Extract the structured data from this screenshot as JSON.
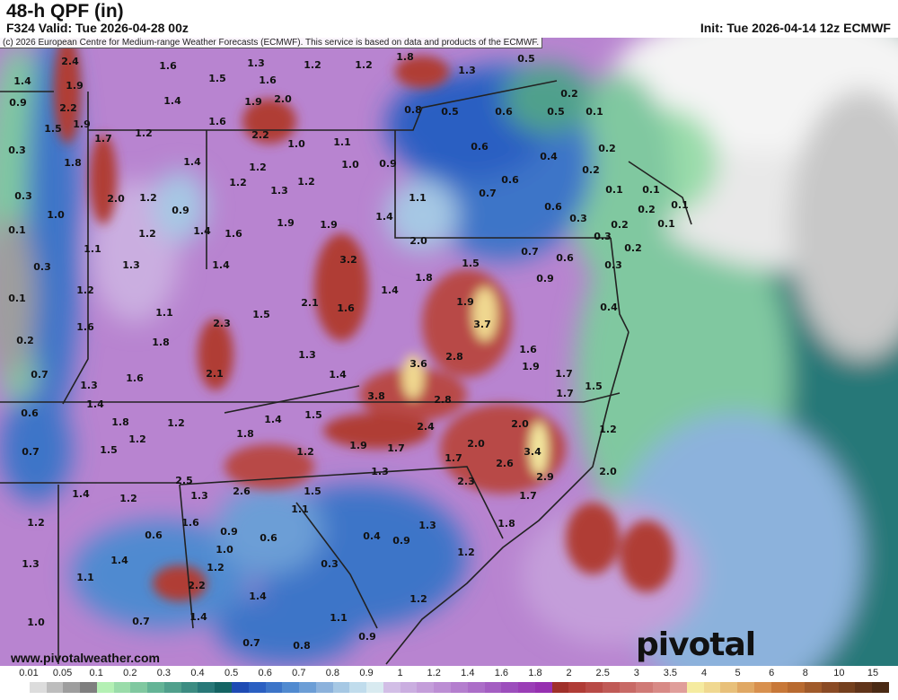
{
  "header": {
    "title": "48-h QPF (in)",
    "subtitle": "F324 Valid: Tue 2026-04-28 00z",
    "init": "Init: Tue 2026-04-14 12z ECMWF"
  },
  "credit": "(c) 2026 European Centre for Medium-range Weather Forecasts (ECMWF). This service is based on data and products of the ECMWF.",
  "website": "www.pivotalweather.com",
  "logo": "pivotal weather",
  "colorbar": {
    "labels": [
      "0.01",
      "0.05",
      "0.1",
      "0.2",
      "0.3",
      "0.4",
      "0.5",
      "0.6",
      "0.7",
      "0.8",
      "0.9",
      "1",
      "1.2",
      "1.4",
      "1.6",
      "1.8",
      "2",
      "2.5",
      "3",
      "3.5",
      "4",
      "5",
      "6",
      "8",
      "10",
      "15"
    ],
    "colors": [
      "#ffffff",
      "#dcdcdc",
      "#bdbdbd",
      "#9e9e9e",
      "#7f7f7f",
      "#b4f0b4",
      "#9adcaa",
      "#80c8a0",
      "#64b496",
      "#50a08c",
      "#3c8c82",
      "#287878",
      "#146464",
      "#1e4bb4",
      "#2a5fc2",
      "#3c74c8",
      "#508ad0",
      "#6c9ed6",
      "#8cb2dc",
      "#a6c8e4",
      "#c0dcec",
      "#d8eaf0",
      "#d2bee6",
      "#caaee0",
      "#c49eda",
      "#bc8ed4",
      "#b47ece",
      "#ac6ec8",
      "#a45ec2",
      "#9c4ebc",
      "#9a3eb6",
      "#9630b0",
      "#a0302a",
      "#b03c36",
      "#b84a46",
      "#c05a56",
      "#c86a66",
      "#d07a76",
      "#d88a86",
      "#e09e9a",
      "#f5eba0",
      "#f0d890",
      "#e8c07a",
      "#e0a864",
      "#d8904e",
      "#c87838",
      "#b86a30",
      "#a05a2a",
      "#8a4a24",
      "#74401e",
      "#60341a",
      "#4a2a14"
    ]
  },
  "map_labels": [
    "2.4",
    "1.6",
    "1.3",
    "1.2",
    "1.2",
    "1.8",
    "1.3",
    "0.5",
    "1.4",
    "1.9",
    "1.5",
    "1.6",
    "0.9",
    "2.2",
    "1.4",
    "1.9",
    "2.0",
    "0.8",
    "0.5",
    "0.6",
    "0.5",
    "0.1",
    "0.2",
    "1.5",
    "1.9",
    "1.7",
    "1.2",
    "1.6",
    "2.2",
    "1.0",
    "1.1",
    "0.6",
    "0.4",
    "0.2",
    "0.3",
    "1.8",
    "1.4",
    "1.2",
    "1.0",
    "0.9",
    "0.2",
    "0.3",
    "2.0",
    "1.2",
    "1.3",
    "1.2",
    "1.1",
    "0.7",
    "0.6",
    "0.1",
    "0.1",
    "1.0",
    "1.2",
    "0.9",
    "0.6",
    "0.3",
    "0.2",
    "0.1",
    "0.1",
    "1.2",
    "1.4",
    "1.6",
    "1.9",
    "1.9",
    "1.4",
    "0.2",
    "0.3",
    "0.1",
    "1.1",
    "2.0",
    "0.7",
    "0.6",
    "0.3",
    "0.2",
    "0.3",
    "1.3",
    "1.4",
    "3.2",
    "1.8",
    "1.5",
    "0.9",
    "0.1",
    "1.2",
    "2.1",
    "1.6",
    "1.4",
    "1.9",
    "0.4",
    "1.1",
    "2.3",
    "1.5",
    "3.7",
    "0.2",
    "1.6",
    "1.8",
    "1.3",
    "1.6",
    "0.7",
    "1.6",
    "2.1",
    "1.4",
    "3.6",
    "2.8",
    "1.9",
    "1.7",
    "1.3",
    "1.5",
    "1.7",
    "1.4",
    "3.8",
    "2.8",
    "0.6",
    "1.8",
    "1.2",
    "1.4",
    "1.5",
    "2.4",
    "2.0",
    "3.4",
    "2.0",
    "1.2",
    "0.7",
    "1.5",
    "1.2",
    "1.8",
    "1.9",
    "1.7",
    "1.7",
    "2.6",
    "1.2",
    "2.9",
    "2.0",
    "1.3",
    "2.3",
    "1.7",
    "2.5",
    "1.3",
    "2.6",
    "1.5",
    "1.4",
    "1.2",
    "1.6",
    "0.9",
    "0.6",
    "1.1",
    "1.2",
    "0.6",
    "1.0",
    "1.8",
    "1.3",
    "0.4",
    "0.9",
    "1.2",
    "1.3",
    "1.4",
    "1.1",
    "1.2",
    "0.3",
    "2.2",
    "1.4",
    "1.2",
    "1.0",
    "0.7",
    "1.4",
    "1.1",
    "0.7",
    "0.8",
    "0.9"
  ]
}
